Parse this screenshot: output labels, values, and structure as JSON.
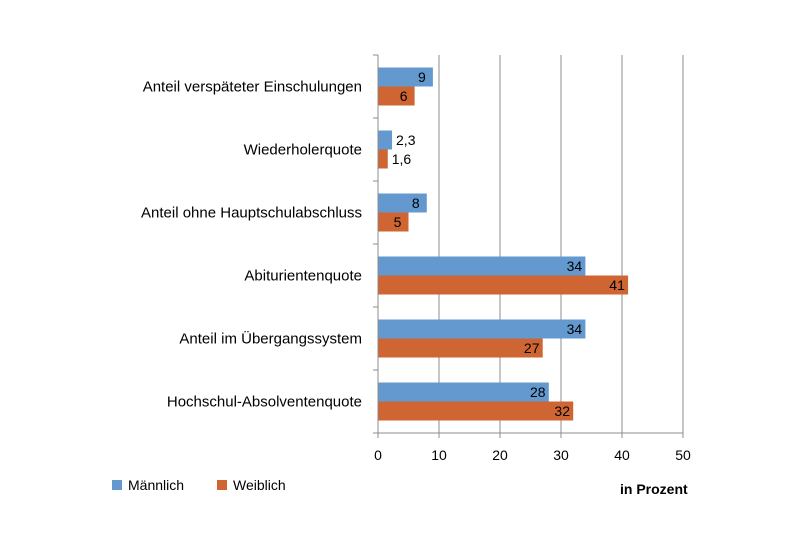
{
  "chart_data": {
    "type": "bar",
    "orientation": "horizontal",
    "categories": [
      "Anteil verspäteter Einschulungen",
      "Wiederholerquote",
      "Anteil ohne Hauptschulabschluss",
      "Abiturientenquote",
      "Anteil im Übergangssystem",
      "Hochschul-Absolventenquote"
    ],
    "series": [
      {
        "name": "Männlich",
        "color": "#6399cf",
        "values": [
          9,
          2.3,
          8,
          34,
          34,
          28
        ],
        "labels": [
          "9",
          "2,3",
          "8",
          "34",
          "34",
          "28"
        ]
      },
      {
        "name": "Weiblich",
        "color": "#cf6532",
        "values": [
          6,
          1.6,
          5,
          41,
          27,
          32
        ],
        "labels": [
          "6",
          "1,6",
          "5",
          "41",
          "27",
          "32"
        ]
      }
    ],
    "xlim": [
      0,
      50
    ],
    "xticks": [
      0,
      10,
      20,
      30,
      40,
      50
    ],
    "xlabel": "in Prozent",
    "grid": true,
    "legend_position": "bottom-left"
  }
}
